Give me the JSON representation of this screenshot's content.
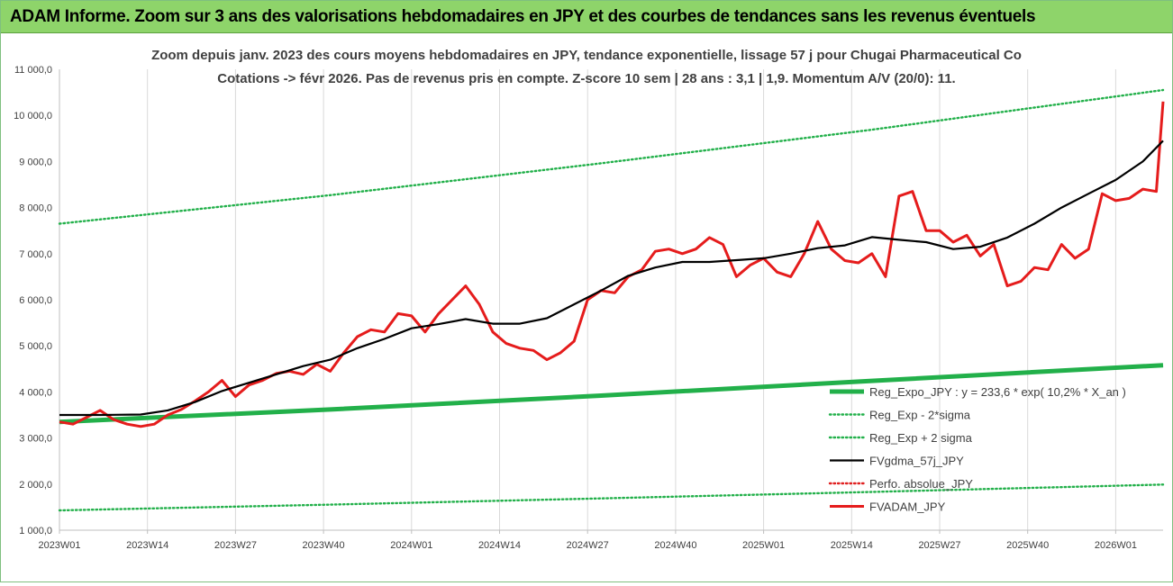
{
  "banner_title": "ADAM Informe. Zoom sur 3 ans des valorisations hebdomadaires en JPY et des courbes de tendances sans les revenus éventuels",
  "chart_data": {
    "type": "line",
    "title": "Zoom depuis janv. 2023 des cours moyens hebdomadaires en JPY, tendance exponentielle, lissage 57 j pour Chugai Pharmaceutical Co",
    "subtitle": "Cotations -> févr 2026. Pas de revenus pris en compte. Z-score 10 sem | 28 ans : 3,1 | 1,9. Momentum A/V (20/0): 11.",
    "xlabel": "",
    "ylabel": "",
    "ylim": [
      1000,
      11000
    ],
    "yticks": [
      1000,
      2000,
      3000,
      4000,
      5000,
      6000,
      7000,
      8000,
      9000,
      10000,
      11000
    ],
    "ytick_labels": [
      "1 000,0",
      "2 000,0",
      "3 000,0",
      "4 000,0",
      "5 000,0",
      "6 000,0",
      "7 000,0",
      "8 000,0",
      "9 000,0",
      "10 000,0",
      "11 000,0"
    ],
    "x_range": [
      0,
      163
    ],
    "xtick_positions": [
      0,
      13,
      26,
      39,
      52,
      65,
      78,
      91,
      104,
      117,
      130,
      143,
      156
    ],
    "xtick_labels": [
      "2023W01",
      "2023W14",
      "2023W27",
      "2023W40",
      "2024W01",
      "2024W14",
      "2024W27",
      "2024W40",
      "2025W01",
      "2025W14",
      "2025W27",
      "2025W40",
      "2026W01"
    ],
    "grid": "vertical",
    "legend_position": "bottom-right",
    "series": [
      {
        "name": "Reg_Expo_JPY : y = 233,6 * exp( 10,2% *  X_an )",
        "color": "#22b04a",
        "style": "solid-thick",
        "x": [
          0,
          40,
          80,
          120,
          163
        ],
        "values": [
          3350,
          3620,
          3920,
          4240,
          4580
        ]
      },
      {
        "name": "Reg_Exp - 2*sigma",
        "color": "#22b04a",
        "style": "dotted",
        "x": [
          0,
          40,
          80,
          120,
          163
        ],
        "values": [
          1430,
          1555,
          1690,
          1830,
          1990
        ]
      },
      {
        "name": "Reg_Exp + 2 sigma",
        "color": "#22b04a",
        "style": "dotted",
        "x": [
          0,
          40,
          80,
          120,
          163
        ],
        "values": [
          7650,
          8270,
          8960,
          9690,
          10550
        ]
      },
      {
        "name": "FVgdma_57j_JPY",
        "color": "#000000",
        "style": "solid",
        "x": [
          0,
          6,
          12,
          16,
          20,
          24,
          28,
          32,
          36,
          40,
          44,
          48,
          52,
          56,
          60,
          64,
          68,
          72,
          76,
          80,
          84,
          88,
          92,
          96,
          100,
          104,
          108,
          112,
          116,
          120,
          124,
          128,
          132,
          136,
          140,
          144,
          148,
          152,
          156,
          160,
          163
        ],
        "values": [
          3500,
          3500,
          3510,
          3600,
          3780,
          4020,
          4200,
          4380,
          4560,
          4700,
          4950,
          5150,
          5380,
          5470,
          5580,
          5480,
          5480,
          5600,
          5900,
          6200,
          6520,
          6700,
          6820,
          6820,
          6860,
          6900,
          7000,
          7120,
          7180,
          7360,
          7300,
          7250,
          7100,
          7150,
          7350,
          7650,
          8000,
          8300,
          8600,
          9000,
          9450
        ]
      },
      {
        "name": "Perfo. absolue_JPY",
        "color": "#e02020",
        "style": "dotted",
        "x": [],
        "values": []
      },
      {
        "name": "FVADAM_JPY",
        "color": "#e51c1c",
        "style": "solid-thick",
        "x": [
          0,
          2,
          4,
          6,
          8,
          10,
          12,
          14,
          16,
          18,
          20,
          22,
          24,
          26,
          28,
          30,
          32,
          34,
          36,
          38,
          40,
          42,
          44,
          46,
          48,
          50,
          52,
          54,
          56,
          58,
          60,
          62,
          64,
          66,
          68,
          70,
          72,
          74,
          76,
          78,
          80,
          82,
          84,
          86,
          88,
          90,
          92,
          94,
          96,
          98,
          100,
          102,
          104,
          106,
          108,
          110,
          112,
          114,
          116,
          118,
          120,
          122,
          124,
          126,
          128,
          130,
          132,
          134,
          136,
          138,
          140,
          142,
          144,
          146,
          148,
          150,
          152,
          154,
          156,
          158,
          160,
          162,
          163
        ],
        "values": [
          3350,
          3300,
          3450,
          3600,
          3400,
          3300,
          3250,
          3300,
          3500,
          3620,
          3800,
          4000,
          4250,
          3900,
          4150,
          4250,
          4400,
          4450,
          4380,
          4600,
          4450,
          4850,
          5200,
          5350,
          5300,
          5700,
          5650,
          5300,
          5700,
          6000,
          6300,
          5900,
          5300,
          5050,
          4950,
          4900,
          4700,
          4850,
          5100,
          6000,
          6200,
          6150,
          6500,
          6650,
          7050,
          7100,
          7000,
          7100,
          7350,
          7200,
          6500,
          6750,
          6900,
          6600,
          6500,
          7000,
          7700,
          7100,
          6850,
          6800,
          7000,
          6500,
          8250,
          8350,
          7500,
          7500,
          7250,
          7400,
          6950,
          7200,
          6300,
          6400,
          6700,
          6650,
          7200,
          6900,
          7100,
          8300,
          8150,
          8200,
          8400,
          8350,
          10300
        ]
      }
    ]
  }
}
